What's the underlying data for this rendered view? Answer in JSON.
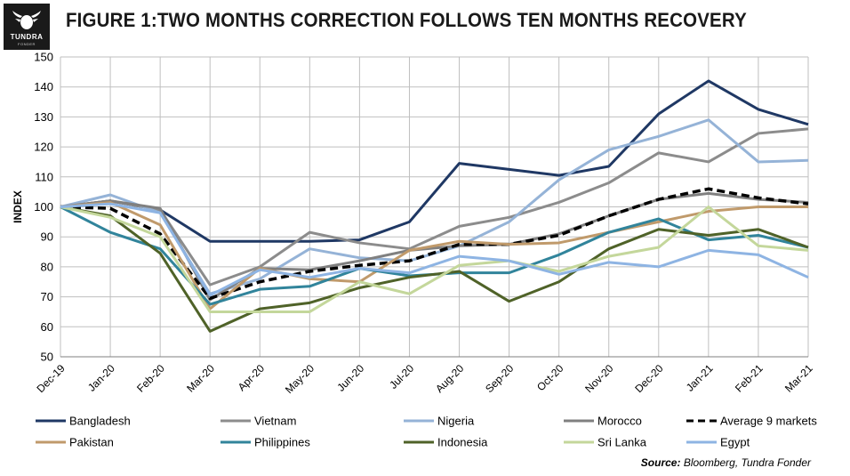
{
  "header": {
    "title": "FIGURE 1:TWO MONTHS CORRECTION FOLLOWS TEN MONTHS RECOVERY",
    "logo_name": "TUNDRA",
    "logo_sub": "FONDER"
  },
  "source": {
    "prefix": "Source:",
    "text": "Bloomberg, Tundra Fonder"
  },
  "chart_data": {
    "type": "line",
    "title": "FIGURE 1:TWO MONTHS CORRECTION FOLLOWS TEN MONTHS RECOVERY",
    "xlabel": "",
    "ylabel": "INDEX",
    "ylim": [
      50,
      150
    ],
    "yticks": [
      50,
      60,
      70,
      80,
      90,
      100,
      110,
      120,
      130,
      140,
      150
    ],
    "grid": true,
    "legend_position": "bottom",
    "categories": [
      "Dec-19",
      "Jan-20",
      "Feb-20",
      "Mar-20",
      "Apr-20",
      "May-20",
      "Jun-20",
      "Jul-20",
      "Aug-20",
      "Sep-20",
      "Oct-20",
      "Nov-20",
      "Dec-20",
      "Jan-21",
      "Feb-21",
      "Mar-21"
    ],
    "series": [
      {
        "name": "Bangladesh",
        "color": "#1f3864",
        "dash": false,
        "values": [
          100,
          102,
          99,
          88.5,
          88.5,
          88.5,
          89,
          95,
          114.5,
          112.5,
          110.5,
          113.5,
          131,
          142,
          132.5,
          127.5
        ]
      },
      {
        "name": "Vietnam",
        "color": "#8c8c8c",
        "dash": false,
        "values": [
          100,
          102,
          99,
          74,
          80,
          91.5,
          88,
          86,
          93.5,
          96.5,
          101.5,
          108,
          118,
          115,
          124.5,
          126
        ]
      },
      {
        "name": "Nigeria",
        "color": "#95b3d7",
        "dash": false,
        "values": [
          100,
          104,
          98,
          71,
          76,
          86,
          83,
          82,
          87,
          95,
          109,
          119,
          123.5,
          129,
          115,
          115.5
        ]
      },
      {
        "name": "Morocco",
        "color": "#808080",
        "dash": false,
        "values": [
          100,
          102,
          99.5,
          69,
          79.5,
          79,
          82,
          85.5,
          87,
          87.5,
          91,
          97,
          102.5,
          104.5,
          102.5,
          101.5
        ]
      },
      {
        "name": "Average 9 markets",
        "color": "#000000",
        "dash": true,
        "values": [
          100,
          99.5,
          91,
          69.5,
          75,
          78.5,
          80.5,
          82,
          87.5,
          87.5,
          90.5,
          97,
          102.5,
          106,
          103,
          101
        ]
      },
      {
        "name": "Pakistan",
        "color": "#c09a6b",
        "dash": false,
        "values": [
          100,
          101.5,
          94,
          66,
          79.5,
          76,
          75,
          85.5,
          88.5,
          87.5,
          88,
          91.5,
          95,
          98.5,
          100,
          100
        ]
      },
      {
        "name": "Philippines",
        "color": "#31849b",
        "dash": false,
        "values": [
          100,
          91.5,
          86,
          67.5,
          72.5,
          73.5,
          79.5,
          77,
          78,
          78,
          84,
          91.5,
          96,
          89,
          90.5,
          86.5
        ]
      },
      {
        "name": "Indonesia",
        "color": "#4f6228",
        "dash": false,
        "values": [
          100,
          97,
          84.5,
          58.5,
          66,
          68,
          73,
          76.5,
          78.5,
          68.5,
          75,
          86,
          92.5,
          90.5,
          92.5,
          86.5
        ]
      },
      {
        "name": "Sri Lanka",
        "color": "#c4d79b",
        "dash": false,
        "values": [
          100,
          96.5,
          90,
          65,
          65,
          65,
          75,
          71,
          80.5,
          82,
          78.5,
          83.5,
          86.5,
          100,
          87,
          85.5
        ]
      },
      {
        "name": "Egypt",
        "color": "#8eb4e3",
        "dash": false,
        "values": [
          100,
          101,
          98,
          70.5,
          79,
          76.5,
          79.5,
          78,
          83.5,
          82,
          77.5,
          81.5,
          80,
          85.5,
          84,
          76.5
        ]
      }
    ]
  }
}
